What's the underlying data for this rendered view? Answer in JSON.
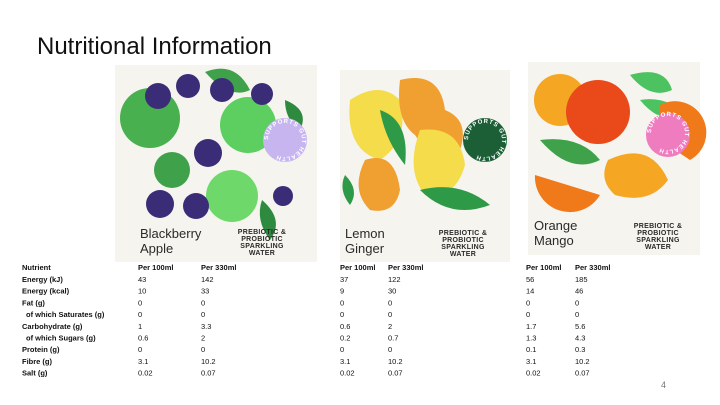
{
  "title": "Nutritional Information",
  "page_number": "4",
  "table": {
    "row_header": "Nutrient",
    "nutrients": [
      "Energy (kJ)",
      "Energy (kcal)",
      "Fat (g)",
      "of which Saturates (g)",
      "Carbohydrate (g)",
      "of which Sugars (g)",
      "Protein (g)",
      "Fibre (g)",
      "Salt (g)"
    ]
  },
  "products": [
    {
      "name": [
        "Blackberry",
        "Apple"
      ],
      "tagline": [
        "PREBIOTIC &",
        "PROBIOTIC",
        "SPARKLING",
        "WATER"
      ],
      "badge": "SUPPORTS GUT HEALTH",
      "columns": [
        "Per 100ml",
        "Per 330ml"
      ],
      "values": [
        [
          43,
          142
        ],
        [
          10,
          33
        ],
        [
          0,
          0
        ],
        [
          0,
          0
        ],
        [
          1,
          3.3
        ],
        [
          0.6,
          2
        ],
        [
          0,
          0
        ],
        [
          3.1,
          10.2
        ],
        [
          0.02,
          0.07
        ]
      ]
    },
    {
      "name": [
        "Lemon",
        "Ginger"
      ],
      "tagline": [
        "PREBIOTIC &",
        "PROBIOTIC",
        "SPARKLING",
        "WATER"
      ],
      "badge": "SUPPORTS GUT HEALTH",
      "columns": [
        "Per 100ml",
        "Per 330ml"
      ],
      "values": [
        [
          37,
          122
        ],
        [
          9,
          30
        ],
        [
          0,
          0
        ],
        [
          0,
          0
        ],
        [
          0.6,
          2
        ],
        [
          0.2,
          0.7
        ],
        [
          0,
          0
        ],
        [
          3.1,
          10.2
        ],
        [
          0.02,
          0.07
        ]
      ]
    },
    {
      "name": [
        "Orange",
        "Mango"
      ],
      "tagline": [
        "PREBIOTIC &",
        "PROBIOTIC",
        "SPARKLING",
        "WATER"
      ],
      "badge": "SUPPORTS GUT HEALTH",
      "columns": [
        "Per 100ml",
        "Per 330ml"
      ],
      "values": [
        [
          56,
          185
        ],
        [
          14,
          46
        ],
        [
          0,
          0
        ],
        [
          0,
          0
        ],
        [
          1.7,
          5.6
        ],
        [
          1.3,
          4.3
        ],
        [
          0.1,
          0.3
        ],
        [
          3.1,
          10.2
        ],
        [
          0.02,
          0.07
        ]
      ]
    }
  ]
}
